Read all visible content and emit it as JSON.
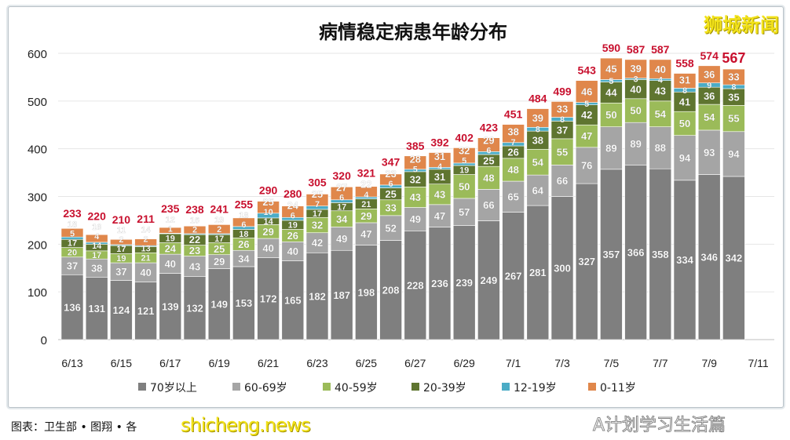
{
  "chart_data": {
    "type": "bar",
    "stacked": true,
    "title": "病情稳定病患年龄分布",
    "xlabel": "",
    "ylabel": "",
    "ylim": [
      0,
      600
    ],
    "yticks": [
      0,
      100,
      200,
      300,
      400,
      500,
      600
    ],
    "grid": true,
    "legend_position": "bottom",
    "categories": [
      "6/13",
      "6/14",
      "6/15",
      "6/16",
      "6/17",
      "6/18",
      "6/19",
      "6/20",
      "6/21",
      "6/22",
      "6/23",
      "6/24",
      "6/25",
      "6/26",
      "6/27",
      "6/28",
      "6/29",
      "6/30",
      "7/1",
      "7/2",
      "7/3",
      "7/4",
      "7/5",
      "7/6",
      "7/7",
      "7/8",
      "7/9",
      "7/10"
    ],
    "xtick_labels": [
      "6/13",
      "6/15",
      "6/17",
      "6/19",
      "6/21",
      "6/23",
      "6/25",
      "6/27",
      "6/29",
      "7/1",
      "7/3",
      "7/5",
      "7/7",
      "7/9",
      "7/11"
    ],
    "totals": [
      233,
      220,
      210,
      211,
      235,
      238,
      241,
      255,
      290,
      280,
      305,
      320,
      321,
      347,
      385,
      392,
      402,
      423,
      451,
      484,
      499,
      543,
      590,
      587,
      587,
      558,
      574,
      567
    ],
    "series": [
      {
        "name": "70岁以上",
        "color": "#7f7f7f",
        "values": [
          136,
          131,
          124,
          121,
          139,
          132,
          149,
          153,
          172,
          165,
          182,
          187,
          198,
          208,
          228,
          236,
          239,
          249,
          267,
          281,
          300,
          327,
          357,
          366,
          358,
          334,
          346,
          342
        ]
      },
      {
        "name": "60-69岁",
        "color": "#a5a5a5",
        "values": [
          37,
          38,
          37,
          40,
          40,
          43,
          29,
          34,
          40,
          40,
          42,
          49,
          47,
          52,
          49,
          47,
          57,
          66,
          65,
          64,
          66,
          76,
          89,
          89,
          88,
          94,
          93,
          94
        ]
      },
      {
        "name": "40-59岁",
        "color": "#9bbb59",
        "values": [
          20,
          17,
          19,
          21,
          24,
          23,
          25,
          26,
          29,
          26,
          32,
          34,
          29,
          33,
          43,
          43,
          50,
          48,
          48,
          54,
          55,
          47,
          50,
          50,
          54,
          50,
          54,
          55
        ]
      },
      {
        "name": "20-39岁",
        "color": "#5f7530",
        "values": [
          17,
          14,
          17,
          13,
          19,
          22,
          17,
          18,
          14,
          19,
          17,
          17,
          21,
          25,
          32,
          31,
          19,
          25,
          26,
          38,
          37,
          42,
          44,
          40,
          43,
          41,
          36,
          35
        ]
      },
      {
        "name": "12-19岁",
        "color": "#4bacc6",
        "values": [
          5,
          4,
          2,
          2,
          1,
          2,
          2,
          6,
          10,
          6,
          7,
          6,
          4,
          6,
          5,
          4,
          5,
          6,
          7,
          8,
          8,
          5,
          5,
          3,
          4,
          8,
          9,
          8
        ]
      },
      {
        "name": "0-11岁",
        "color": "#e0874b",
        "values": [
          18,
          16,
          11,
          14,
          12,
          16,
          19,
          18,
          25,
          24,
          25,
          27,
          22,
          23,
          28,
          31,
          32,
          29,
          38,
          39,
          33,
          46,
          45,
          39,
          40,
          31,
          36,
          33
        ]
      }
    ],
    "total_label_color": "#c8102e"
  },
  "watermarks": {
    "top_right": "狮城新闻",
    "bottom_left": "shicheng.news",
    "bottom_right": "A计划学习生活篇"
  },
  "source_note": "图表：卫生部 • 图翔 • 各"
}
